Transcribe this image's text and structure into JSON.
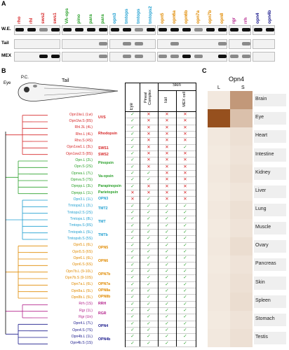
{
  "panelA": {
    "letter": "A",
    "gene_labels": [
      {
        "text": "rho",
        "color": "#d62728"
      },
      {
        "text": "rhl",
        "color": "#d62728"
      },
      {
        "text": "sws2",
        "color": "#d62728"
      },
      {
        "text": "sws1",
        "color": "#d62728"
      },
      {
        "text": "VA-ops",
        "color": "#2aa02a"
      },
      {
        "text": "pino",
        "color": "#2aa02a"
      },
      {
        "text": "para",
        "color": "#2aa02a"
      },
      {
        "text": "para",
        "color": "#2aa02a"
      },
      {
        "text": "opn3",
        "color": "#1f9fd0"
      },
      {
        "text": "tmtops",
        "color": "#1f9fd0"
      },
      {
        "text": "tmtops",
        "color": "#1f9fd0"
      },
      {
        "text": "tmtops2",
        "color": "#1f9fd0"
      },
      {
        "text": "opn5",
        "color": "#e08a00"
      },
      {
        "text": "opn6a",
        "color": "#e08a00"
      },
      {
        "text": "opn6b",
        "color": "#e08a00"
      },
      {
        "text": "opn7a",
        "color": "#e08a00"
      },
      {
        "text": "opn7b",
        "color": "#e08a00"
      },
      {
        "text": "opn8",
        "color": "#e08a00"
      },
      {
        "text": "rgr",
        "color": "#b4238c"
      },
      {
        "text": "rrh",
        "color": "#b4238c"
      },
      {
        "text": "opn4",
        "color": "#1a1a8c"
      },
      {
        "text": "opn4b",
        "color": "#1a1a8c"
      }
    ],
    "row_labels": [
      "W.E.",
      "Tail",
      "MEX"
    ]
  },
  "panelB": {
    "letter": "B",
    "fish_labels": {
      "eye": "Eye",
      "pc": "P.C.",
      "tail": "Tail"
    },
    "table_headers": {
      "eye": "Eye",
      "pineal": "Pineal Complex",
      "skin": "Skin",
      "tail": "Tail",
      "mex": "MEX cell"
    },
    "genes": [
      {
        "name": "Opn1lw.L (Lw)",
        "color": "#d62728",
        "marks": [
          "✓",
          "✕",
          "✕",
          "✕"
        ]
      },
      {
        "name": "Opn1lw.S (8S)",
        "color": "#d62728",
        "marks": [
          "✓",
          "✕",
          "✕",
          "✕"
        ]
      },
      {
        "name": "Rhl.3L (4L)",
        "color": "#d62728",
        "marks": [
          "✓",
          "✕",
          "✕",
          "✕"
        ]
      },
      {
        "name": "Rho.L (4L)",
        "color": "#d62728",
        "marks": [
          "✓",
          "✕",
          "✕",
          "✕"
        ]
      },
      {
        "name": "Rho.S (4S)",
        "color": "#d62728",
        "marks": [
          "✓",
          "✕",
          "✕",
          "✕"
        ]
      },
      {
        "name": "Opn1sw1.L (3L)",
        "color": "#d62728",
        "marks": [
          "✓",
          "✕",
          "✕",
          "✓"
        ]
      },
      {
        "name": "Opn1sw2.S (8S)",
        "color": "#d62728",
        "marks": [
          "✓",
          "✕",
          "✕",
          "✕"
        ]
      },
      {
        "name": "Opn.L (2L)",
        "color": "#2aa02a",
        "marks": [
          "✓",
          "✕",
          "✕",
          "✕"
        ]
      },
      {
        "name": "Opn.S (2S)",
        "color": "#2aa02a",
        "marks": [
          "✓",
          "✕",
          "✕",
          "✕"
        ]
      },
      {
        "name": "Opnva.L (7L)",
        "color": "#2aa02a",
        "marks": [
          "✓",
          "✓",
          "✕",
          "✕"
        ]
      },
      {
        "name": "Opnva.S (7S)",
        "color": "#2aa02a",
        "marks": [
          "✓",
          "✓",
          "✕",
          "✕"
        ]
      },
      {
        "name": "Opnpp.L (3L)",
        "color": "#2aa02a",
        "marks": [
          "✓",
          "✕",
          "✕",
          "✕"
        ]
      },
      {
        "name": "Opnpp.L (1L)",
        "color": "#2aa02a",
        "marks": [
          "✕",
          "✕",
          "✕",
          "✕"
        ]
      },
      {
        "name": "Opn3.L (1L)",
        "color": "#1f9fd0",
        "marks": [
          "✕",
          "✓",
          "✕",
          "✕"
        ]
      },
      {
        "name": "Tmtops2.L (2L)",
        "color": "#1f9fd0",
        "marks": [
          "✓",
          "✓",
          "✓",
          "✓"
        ]
      },
      {
        "name": "Tmtops2.S (2S)",
        "color": "#1f9fd0",
        "marks": [
          "✓",
          "✓",
          "✓",
          "✓"
        ]
      },
      {
        "name": "Tmtops.L (8L)",
        "color": "#1f9fd0",
        "marks": [
          "✓",
          "✓",
          "✓",
          "✓"
        ]
      },
      {
        "name": "Tmtops.S (8S)",
        "color": "#1f9fd0",
        "marks": [
          "✓",
          "✓",
          "✓",
          "✓"
        ]
      },
      {
        "name": "Tmtopsb.L (5L)",
        "color": "#1f9fd0",
        "marks": [
          "✓",
          "✓",
          "✓",
          "✓"
        ]
      },
      {
        "name": "Tmtopsb.S (5S)",
        "color": "#1f9fd0",
        "marks": [
          "✓",
          "✓",
          "✓",
          "✓"
        ]
      },
      {
        "name": "Opn5.L (6L)",
        "color": "#e08a00",
        "marks": [
          "✓",
          "✓",
          "✓",
          "✓"
        ]
      },
      {
        "name": "Opn5.S (6S)",
        "color": "#e08a00",
        "marks": [
          "✓",
          "✓",
          "✓",
          "✓"
        ]
      },
      {
        "name": "Opn6.L (6L)",
        "color": "#e08a00",
        "marks": [
          "✓",
          "✓",
          "✓",
          "✓"
        ]
      },
      {
        "name": "Opn6.S (6S)",
        "color": "#e08a00",
        "marks": [
          "✓",
          "✓",
          "✓",
          "✓"
        ]
      },
      {
        "name": "Opn7b.L (9-10L)",
        "color": "#e08a00",
        "marks": [
          "✓",
          "✓",
          "✓",
          "✓"
        ]
      },
      {
        "name": "Opn7b.S (9-10S)",
        "color": "#e08a00",
        "marks": [
          "✓",
          "✓",
          "✓",
          "✓"
        ]
      },
      {
        "name": "Opn7a.L (6L)",
        "color": "#e08a00",
        "marks": [
          "✓",
          "✓",
          "✓",
          "✓"
        ]
      },
      {
        "name": "Opn8a.L (5L)",
        "color": "#e08a00",
        "marks": [
          "✓",
          "✓",
          "✓",
          "✓"
        ]
      },
      {
        "name": "Opn8b.L (5L)",
        "color": "#e08a00",
        "marks": [
          "✓",
          "✓",
          "✓",
          "✓"
        ]
      },
      {
        "name": "Rrh (1S)",
        "color": "#b4238c",
        "marks": [
          "✓",
          "✓",
          "✓",
          "✓"
        ]
      },
      {
        "name": "Rgr (1L)",
        "color": "#b4238c",
        "marks": [
          "✓",
          "✓",
          "✓",
          "✓"
        ]
      },
      {
        "name": "Rgr (Un)",
        "color": "#b4238c",
        "marks": [
          "✓",
          "✓",
          "✓",
          "✓"
        ]
      },
      {
        "name": "Opn4.L (7L)",
        "color": "#1a1a8c",
        "marks": [
          "✓",
          "✓",
          "✓",
          "✓"
        ]
      },
      {
        "name": "Opn4.S (7S)",
        "color": "#1a1a8c",
        "marks": [
          "✓",
          "✓",
          "✓",
          "✓"
        ]
      },
      {
        "name": "Opn4b.L (1L)",
        "color": "#1a1a8c",
        "marks": [
          "✓",
          "✓",
          "✓",
          "✓"
        ]
      },
      {
        "name": "Opn4b.S (1S)",
        "color": "#1a1a8c",
        "marks": [
          "✓",
          "✓",
          "✓",
          "✓"
        ]
      }
    ],
    "families": [
      {
        "text": "UVS",
        "color": "#d62728"
      },
      {
        "text": "Rhodopsin",
        "color": "#d62728"
      },
      {
        "text": "SWS1",
        "color": "#d62728"
      },
      {
        "text": "SWS2",
        "color": "#d62728"
      },
      {
        "text": "Pinopsin",
        "color": "#2aa02a"
      },
      {
        "text": "Va-opsin",
        "color": "#2aa02a"
      },
      {
        "text": "Parapinopsin",
        "color": "#2aa02a"
      },
      {
        "text": "Parietopsin",
        "color": "#2aa02a"
      },
      {
        "text": "OPN3",
        "color": "#1f9fd0"
      },
      {
        "text": "TMT2",
        "color": "#1f9fd0"
      },
      {
        "text": "TMT",
        "color": "#1f9fd0"
      },
      {
        "text": "TMTb",
        "color": "#1f9fd0"
      },
      {
        "text": "OPN5",
        "color": "#e08a00"
      },
      {
        "text": "OPN6",
        "color": "#e08a00"
      },
      {
        "text": "OPN7b",
        "color": "#e08a00"
      },
      {
        "text": "OPN7a",
        "color": "#e08a00"
      },
      {
        "text": "OPN8a",
        "color": "#e08a00"
      },
      {
        "text": "OPN8b",
        "color": "#e08a00"
      },
      {
        "text": "RRH",
        "color": "#b4238c"
      },
      {
        "text": "RGR",
        "color": "#b4238c"
      },
      {
        "text": "OPN4",
        "color": "#1a1a8c"
      },
      {
        "text": "OPN4b",
        "color": "#1a1a8c"
      }
    ]
  },
  "panelC": {
    "letter": "C",
    "title": "Opn4",
    "col_L": "L",
    "col_S": "S",
    "tissues": [
      {
        "name": "Brain",
        "L": 0.05,
        "S": 0.55
      },
      {
        "name": "Eye",
        "L": 1.0,
        "S": 0.3
      },
      {
        "name": "Heart",
        "L": 0.05,
        "S": 0.1
      },
      {
        "name": "Intestine",
        "L": 0.04,
        "S": 0.08
      },
      {
        "name": "Kidney",
        "L": 0.05,
        "S": 0.1
      },
      {
        "name": "Liver",
        "L": 0.04,
        "S": 0.07
      },
      {
        "name": "Lung",
        "L": 0.05,
        "S": 0.1
      },
      {
        "name": "Muscle",
        "L": 0.04,
        "S": 0.08
      },
      {
        "name": "Ovary",
        "L": 0.05,
        "S": 0.12
      },
      {
        "name": "Pancreas",
        "L": 0.04,
        "S": 0.08
      },
      {
        "name": "Skin",
        "L": 0.05,
        "S": 0.1
      },
      {
        "name": "Spleen",
        "L": 0.05,
        "S": 0.12
      },
      {
        "name": "Stomach",
        "L": 0.04,
        "S": 0.08
      },
      {
        "name": "Testis",
        "L": 0.05,
        "S": 0.1
      }
    ]
  }
}
